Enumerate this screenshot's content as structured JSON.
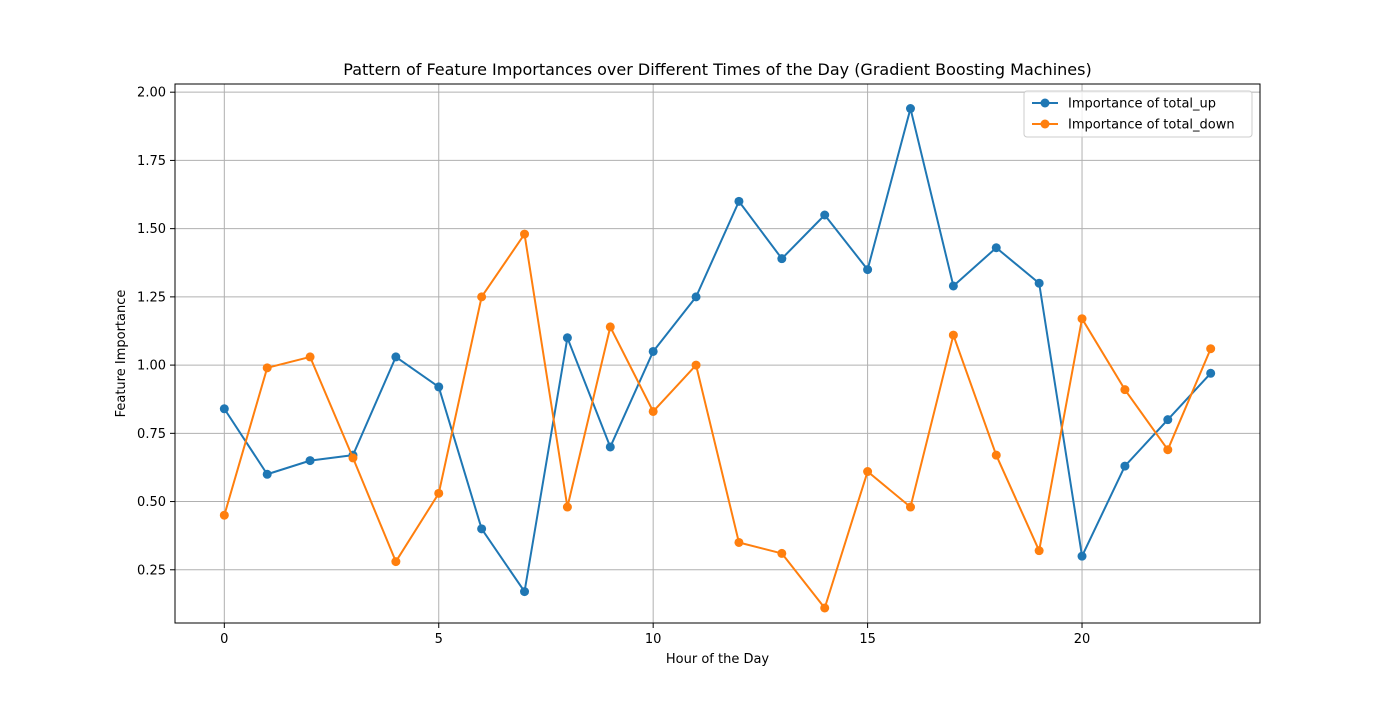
{
  "chart_data": {
    "type": "line",
    "title": "Pattern of Feature Importances over Different Times of the Day (Gradient Boosting Machines)",
    "xlabel": "Hour of the Day",
    "ylabel": "Feature Importance",
    "xlim": [
      -1.15,
      24.15
    ],
    "ylim": [
      0.055,
      2.03
    ],
    "xticks": [
      0,
      5,
      10,
      15,
      20
    ],
    "xtick_labels": [
      "0",
      "5",
      "10",
      "15",
      "20"
    ],
    "yticks": [
      0.25,
      0.5,
      0.75,
      1.0,
      1.25,
      1.5,
      1.75,
      2.0
    ],
    "ytick_labels": [
      "0.25",
      "0.50",
      "0.75",
      "1.00",
      "1.25",
      "1.50",
      "1.75",
      "2.00"
    ],
    "grid": true,
    "legend_position": "upper-right",
    "x": [
      0,
      1,
      2,
      3,
      4,
      5,
      6,
      7,
      8,
      9,
      10,
      11,
      12,
      13,
      14,
      15,
      16,
      17,
      18,
      19,
      20,
      21,
      22,
      23
    ],
    "series": [
      {
        "name": "Importance of total_up",
        "color": "#1f77b4",
        "marker": "circle",
        "values": [
          0.84,
          0.6,
          0.65,
          0.67,
          1.03,
          0.92,
          0.4,
          0.17,
          1.1,
          0.7,
          1.05,
          1.25,
          1.6,
          1.39,
          1.55,
          1.35,
          1.94,
          1.29,
          1.43,
          1.3,
          0.3,
          0.63,
          0.8,
          0.97
        ]
      },
      {
        "name": "Importance of total_down",
        "color": "#ff7f0e",
        "marker": "circle",
        "values": [
          0.45,
          0.99,
          1.03,
          0.66,
          0.28,
          0.53,
          1.25,
          1.48,
          0.48,
          1.14,
          0.83,
          1.0,
          0.35,
          0.31,
          0.11,
          0.61,
          0.48,
          1.11,
          0.67,
          0.32,
          1.17,
          0.91,
          0.69,
          1.06
        ]
      }
    ]
  }
}
